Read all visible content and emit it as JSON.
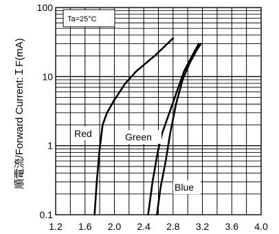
{
  "chart_data": {
    "type": "line",
    "title": "",
    "annotation": "Ta=25°C",
    "xlabel": "",
    "ylabel": "順電流/Forward Current:ＩF(mA)",
    "x_ticks": [
      "1.2",
      "1.6",
      "2.0",
      "2.4",
      "2.8",
      "3.2",
      "3.6",
      "4.0"
    ],
    "y_ticks": [
      "0.1",
      "1",
      "10",
      "100"
    ],
    "xlim": [
      1.2,
      4.0
    ],
    "ylim": [
      0.1,
      100
    ],
    "y_scale": "log",
    "grid": true,
    "line_color": "#000000",
    "series": [
      {
        "name": "Red",
        "points": [
          [
            1.73,
            0.1
          ],
          [
            1.76,
            0.3
          ],
          [
            1.8,
            0.9
          ],
          [
            1.84,
            2.0
          ],
          [
            1.9,
            3.0
          ],
          [
            2.0,
            4.6
          ],
          [
            2.15,
            8.0
          ],
          [
            2.3,
            12.0
          ],
          [
            2.55,
            20.0
          ],
          [
            2.8,
            36.0
          ]
        ]
      },
      {
        "name": "Green",
        "points": [
          [
            2.46,
            0.1
          ],
          [
            2.52,
            0.3
          ],
          [
            2.59,
            0.8
          ],
          [
            2.65,
            1.5
          ],
          [
            2.75,
            3.0
          ],
          [
            2.85,
            6.0
          ],
          [
            2.95,
            12.0
          ],
          [
            3.06,
            20.0
          ],
          [
            3.15,
            30.0
          ]
        ]
      },
      {
        "name": "Blue",
        "points": [
          [
            2.58,
            0.1
          ],
          [
            2.63,
            0.25
          ],
          [
            2.7,
            0.6
          ],
          [
            2.76,
            1.5
          ],
          [
            2.84,
            4.0
          ],
          [
            2.93,
            9.0
          ],
          [
            3.03,
            16.0
          ],
          [
            3.12,
            24.0
          ],
          [
            3.18,
            30.0
          ]
        ]
      }
    ]
  }
}
